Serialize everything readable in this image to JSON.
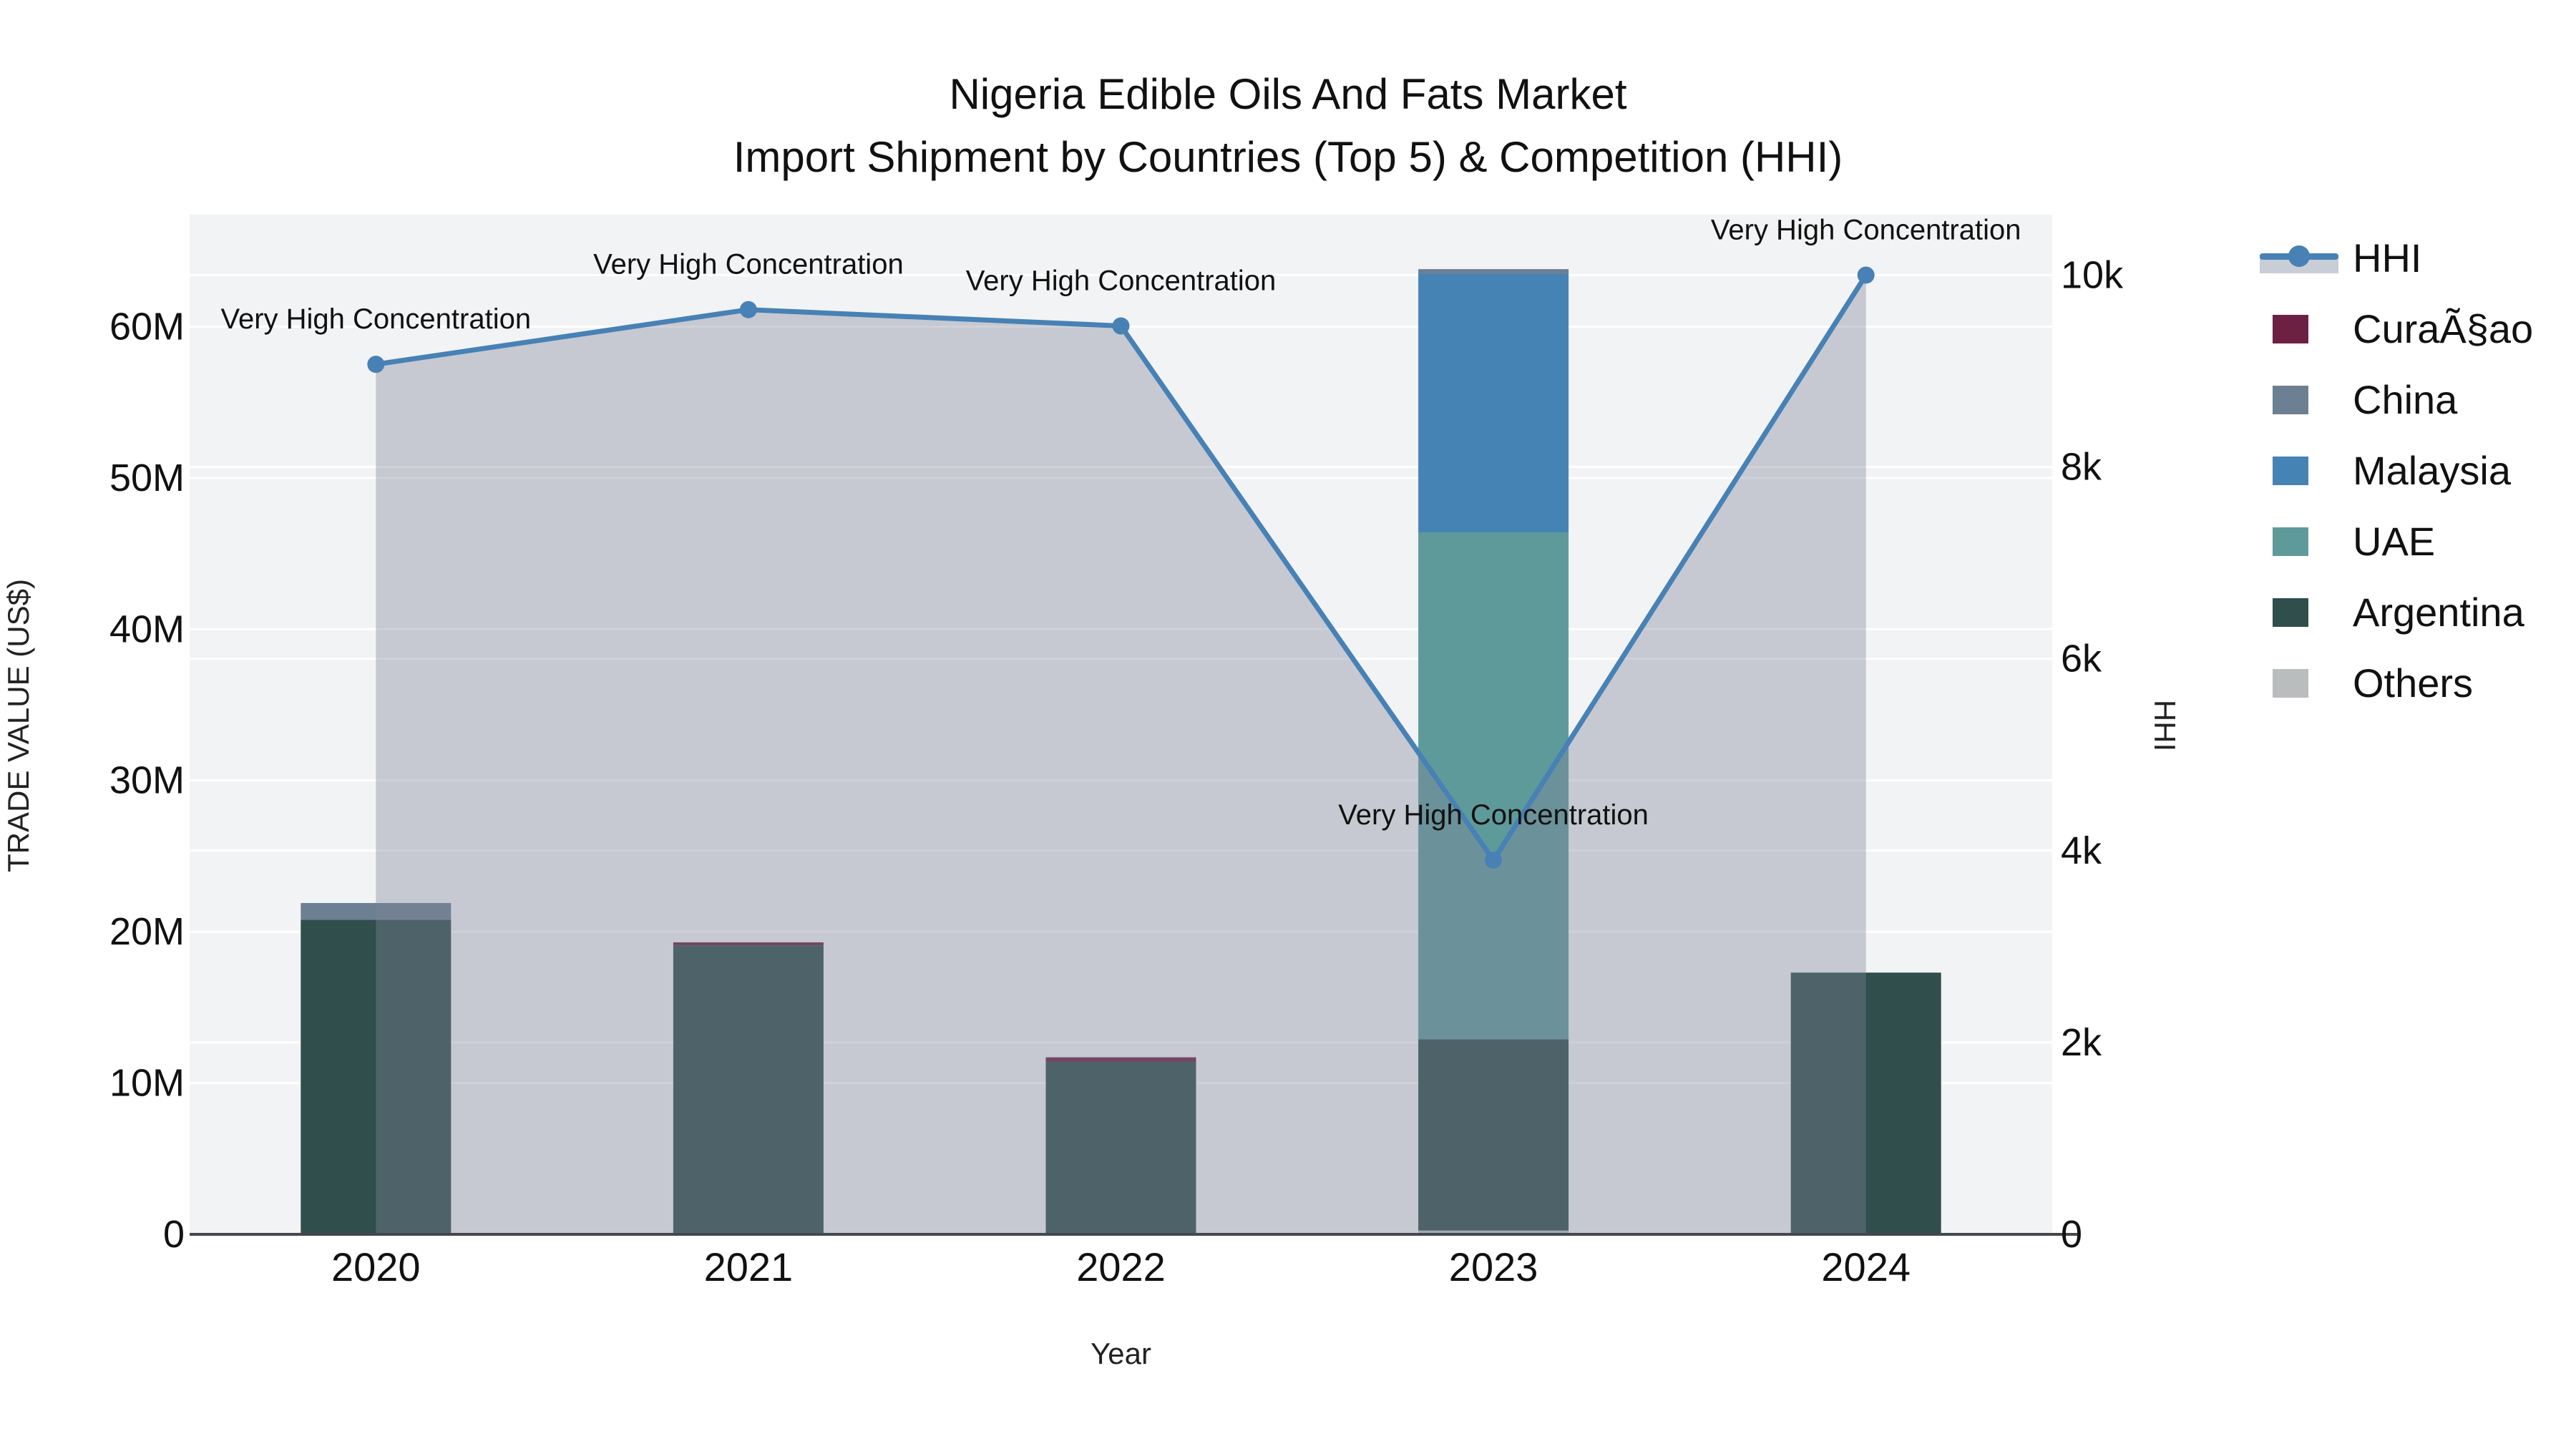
{
  "title": {
    "line1": "Nigeria Edible Oils And Fats Market",
    "line2": "Import Shipment by Countries (Top 5) & Competition (HHI)"
  },
  "colors": {
    "plot_background": "#f2f3f4",
    "gridline": "#ffffff",
    "axis_line": "#44484b",
    "hhi_line": "#4781b5",
    "hhi_area_fill": "#7d8698",
    "hhi_area_opacity": 0.38,
    "legend_hhi_band": "#c9cdd6",
    "text": "#111111"
  },
  "legend": {
    "items": [
      {
        "label": "HHI",
        "type": "line",
        "color": "#4781b5"
      },
      {
        "label": "CuraÃ§ao",
        "type": "swatch",
        "color": "#6c2143"
      },
      {
        "label": "China",
        "type": "swatch",
        "color": "#6d7f92"
      },
      {
        "label": "Malaysia",
        "type": "swatch",
        "color": "#4683b5"
      },
      {
        "label": "UAE",
        "type": "swatch",
        "color": "#5f9a9b"
      },
      {
        "label": "Argentina",
        "type": "swatch",
        "color": "#2f4e4c"
      },
      {
        "label": "Others",
        "type": "swatch",
        "color": "#b9bdbe"
      }
    ]
  },
  "chart_data": {
    "type": "combo",
    "bar_type": "stacked",
    "title": "Nigeria Edible Oils And Fats Market — Import Shipment by Countries (Top 5) & Competition (HHI)",
    "categories": [
      "2020",
      "2021",
      "2022",
      "2023",
      "2024"
    ],
    "bar_series": [
      {
        "name": "CuraÃ§ao",
        "color": "#6c2143",
        "values": [
          0,
          200000,
          300000,
          0,
          0
        ]
      },
      {
        "name": "China",
        "color": "#6d7f92",
        "values": [
          1100000,
          0,
          0,
          300000,
          0
        ]
      },
      {
        "name": "Malaysia",
        "color": "#4683b5",
        "values": [
          0,
          0,
          0,
          17100000,
          0
        ]
      },
      {
        "name": "UAE",
        "color": "#5f9a9b",
        "values": [
          0,
          0,
          0,
          33500000,
          0
        ]
      },
      {
        "name": "Argentina",
        "color": "#2f4e4c",
        "values": [
          20800000,
          19100000,
          11400000,
          12650000,
          17300000
        ]
      },
      {
        "name": "Others",
        "color": "#b9bdbe",
        "values": [
          0,
          0,
          0,
          250000,
          0
        ]
      }
    ],
    "stack_order_bottom_to_top": [
      "Others",
      "Argentina",
      "UAE",
      "Malaysia",
      "China",
      "CuraÃ§ao"
    ],
    "line_series": {
      "name": "HHI",
      "axis": "right",
      "fill": "tozeroy",
      "values": [
        9070,
        9640,
        9470,
        3900,
        10000
      ]
    },
    "annotations": [
      {
        "x": "2020",
        "text": "Very High Concentration"
      },
      {
        "x": "2021",
        "text": "Very High Concentration"
      },
      {
        "x": "2022",
        "text": "Very High Concentration"
      },
      {
        "x": "2023",
        "text": "Very High Concentration"
      },
      {
        "x": "2024",
        "text": "Very High Concentration"
      }
    ],
    "left_axis": {
      "title": "TRADE VALUE (US$)",
      "tick_labels": [
        "0",
        "10M",
        "20M",
        "30M",
        "40M",
        "50M",
        "60M"
      ],
      "tick_values": [
        0,
        10000000,
        20000000,
        30000000,
        40000000,
        50000000,
        60000000
      ],
      "range": [
        0,
        67400000
      ]
    },
    "right_axis": {
      "title": "HHI",
      "tick_labels": [
        "0",
        "2k",
        "4k",
        "6k",
        "8k",
        "10k"
      ],
      "tick_values": [
        0,
        2000,
        4000,
        6000,
        8000,
        10000
      ],
      "range": [
        0,
        10630
      ]
    },
    "x_axis": {
      "title": "Year"
    },
    "grid": true,
    "legend_position": "right"
  }
}
